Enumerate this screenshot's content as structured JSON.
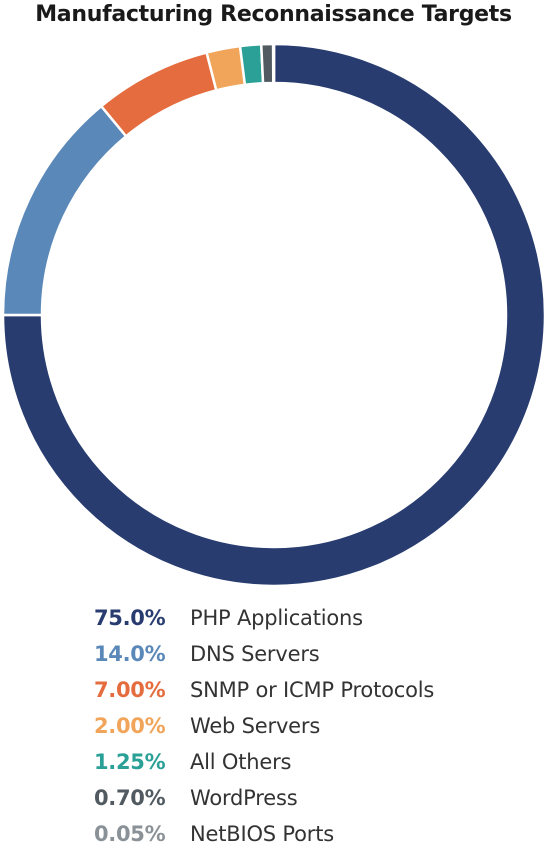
{
  "chart_data": {
    "type": "pie",
    "title": "Manufacturing Reconnaissance Targets",
    "categories": [
      "PHP Applications",
      "DNS Servers",
      "SNMP or ICMP Protocols",
      "Web Servers",
      "All Others",
      "WordPress",
      "NetBIOS Ports"
    ],
    "values": [
      75.0,
      14.0,
      7.0,
      2.0,
      1.25,
      0.7,
      0.05
    ],
    "value_labels": [
      "75.0%",
      "14.0%",
      "7.00%",
      "2.00%",
      "1.25%",
      "0.70%",
      "0.05%"
    ],
    "colors": [
      "#283c70",
      "#5a88b8",
      "#e46c3e",
      "#f0a55a",
      "#2aa096",
      "#505a60",
      "#8a9298"
    ],
    "legend_position": "bottom",
    "style": "donut"
  }
}
